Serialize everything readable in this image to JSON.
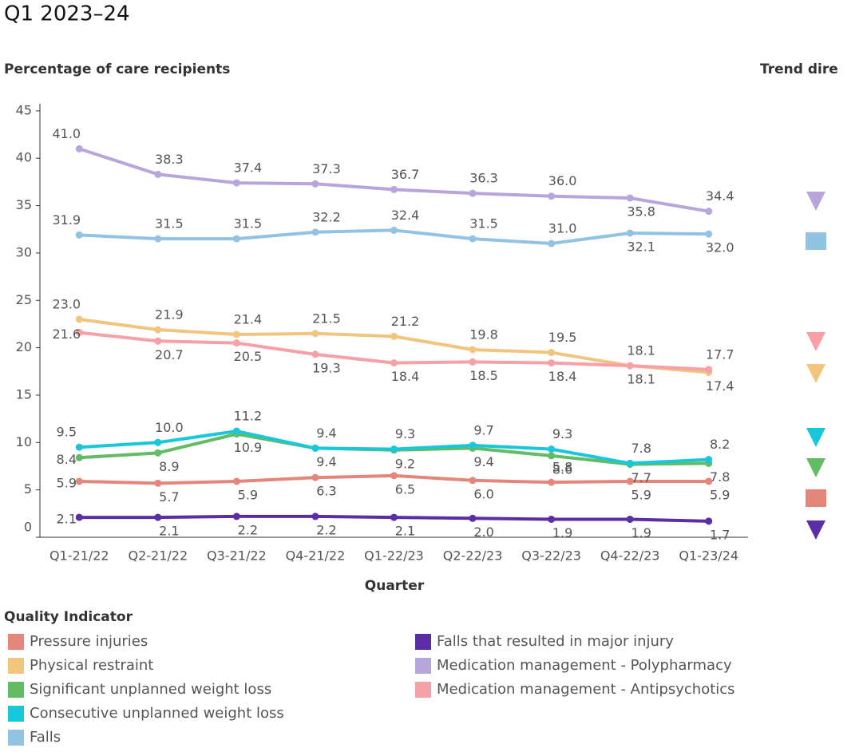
{
  "chart_data": {
    "type": "line",
    "title": "Q1 2023–24",
    "y_label": "Percentage of care recipients",
    "x_label": "Quarter",
    "legend_title": "Quality Indicator",
    "trend_title": "Trend dire",
    "categories": [
      "Q1-21/22",
      "Q2-21/22",
      "Q3-21/22",
      "Q4-21/22",
      "Q1-22/23",
      "Q2-22/23",
      "Q3-22/23",
      "Q4-22/23",
      "Q1-23/24"
    ],
    "ylim": [
      0,
      46
    ],
    "yticks": [
      0,
      5,
      10,
      15,
      20,
      25,
      30,
      35,
      40,
      45
    ],
    "series": [
      {
        "name": "Pressure injuries",
        "color": "#e4877a",
        "trend_shape": "square",
        "values": [
          5.9,
          5.7,
          5.9,
          6.3,
          6.5,
          6.0,
          5.8,
          5.9,
          5.9
        ],
        "value_labels": [
          "5.9",
          "5.7",
          "5.9",
          "6.3",
          "6.5",
          "6.0",
          "5.8",
          "5.9",
          "5.9"
        ]
      },
      {
        "name": "Physical restraint",
        "color": "#f2c57f",
        "trend_shape": "down",
        "values": [
          23.0,
          21.9,
          21.4,
          21.5,
          21.2,
          19.8,
          19.5,
          18.1,
          17.4
        ],
        "value_labels": [
          "23.0",
          "21.9",
          "21.4",
          "21.5",
          "21.2",
          "19.8",
          "19.5",
          "18.1",
          "17.4"
        ]
      },
      {
        "name": "Significant unplanned weight loss",
        "color": "#63bb63",
        "trend_shape": "down",
        "values": [
          8.4,
          8.9,
          10.9,
          9.4,
          9.2,
          9.4,
          8.6,
          7.7,
          7.8
        ],
        "value_labels": [
          "8.4",
          "8.9",
          "10.9",
          "9.4",
          "9.2",
          "9.4",
          "8.6",
          "7.7",
          "7.8"
        ]
      },
      {
        "name": "Consecutive unplanned weight loss",
        "color": "#18c7d9",
        "trend_shape": "down",
        "values": [
          9.5,
          10.0,
          11.2,
          9.4,
          9.3,
          9.7,
          9.3,
          7.8,
          8.2
        ],
        "value_labels": [
          "9.5",
          "10.0",
          "11.2",
          "9.4",
          "9.3",
          "9.7",
          "9.3",
          "7.8",
          "8.2"
        ]
      },
      {
        "name": "Falls",
        "color": "#92c3e3",
        "trend_shape": "square",
        "values": [
          31.9,
          31.5,
          31.5,
          32.2,
          32.4,
          31.5,
          31.0,
          32.1,
          32.0
        ],
        "value_labels": [
          "31.9",
          "31.5",
          "31.5",
          "32.2",
          "32.4",
          "31.5",
          "31.0",
          "32.1",
          "32.0"
        ]
      },
      {
        "name": "Falls that resulted in major injury",
        "color": "#5b2ea6",
        "trend_shape": "down",
        "values": [
          2.1,
          2.1,
          2.2,
          2.2,
          2.1,
          2.0,
          1.9,
          1.9,
          1.7
        ],
        "value_labels": [
          "2.1",
          "2.1",
          "2.2",
          "2.2",
          "2.1",
          "2.0",
          "1.9",
          "1.9",
          "1.7"
        ]
      },
      {
        "name": "Medication management - Polypharmacy",
        "color": "#b8a5dc",
        "trend_shape": "down",
        "values": [
          41.0,
          38.3,
          37.4,
          37.3,
          36.7,
          36.3,
          36.0,
          35.8,
          34.4
        ],
        "value_labels": [
          "41.0",
          "38.3",
          "37.4",
          "37.3",
          "36.7",
          "36.3",
          "36.0",
          "35.8",
          "34.4"
        ]
      },
      {
        "name": "Medication management - Antipsychotics",
        "color": "#f8a0a8",
        "trend_shape": "down",
        "values": [
          21.6,
          20.7,
          20.5,
          19.3,
          18.4,
          18.5,
          18.4,
          18.1,
          17.7
        ],
        "value_labels": [
          "21.6",
          "20.7",
          "20.5",
          "19.3",
          "18.4",
          "18.5",
          "18.4",
          "18.1",
          "17.7"
        ]
      }
    ]
  }
}
